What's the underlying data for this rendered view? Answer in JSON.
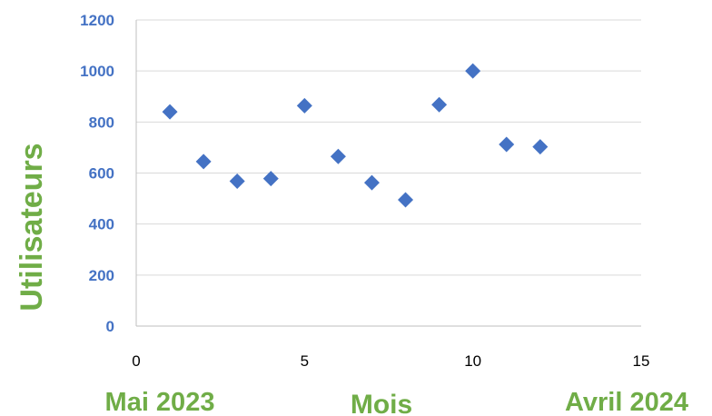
{
  "chart_data": {
    "type": "scatter",
    "x": [
      1,
      2,
      3,
      4,
      5,
      6,
      7,
      8,
      9,
      10,
      11,
      12
    ],
    "y": [
      840,
      645,
      568,
      578,
      864,
      665,
      562,
      495,
      868,
      1000,
      712,
      703
    ],
    "xlim": [
      0,
      15
    ],
    "ylim": [
      0,
      1200
    ],
    "xticks": [
      "0",
      "5",
      "10",
      "15"
    ],
    "yticks": [
      "0",
      "200",
      "400",
      "600",
      "800",
      "1000",
      "1200"
    ],
    "ylabel": "Utilisateurs",
    "xlabel": "Mois",
    "x_start_label": "Mai 2023",
    "x_end_label": "Avril 2024",
    "grid": "horizontal",
    "marker": "diamond",
    "colors": {
      "marker": "#4472C4",
      "ytick": "#4472C4",
      "label": "#70AD47",
      "grid": "#D9D9D9"
    }
  }
}
